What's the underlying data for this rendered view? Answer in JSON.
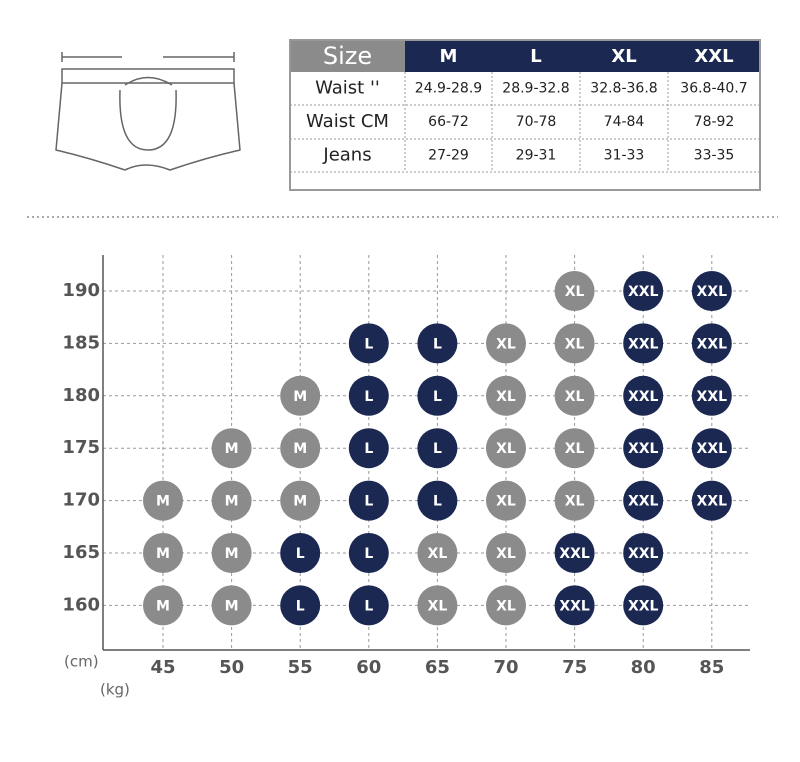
{
  "size_table": {
    "header": [
      "Size",
      "M",
      "L",
      "XL",
      "XXL"
    ],
    "rows": [
      [
        "Waist ''",
        "24.9-28.9",
        "28.9-32.8",
        "32.8-36.8",
        "36.8-40.7"
      ],
      [
        "Waist CM",
        "66-72",
        "70-78",
        "74-84",
        "78-92"
      ],
      [
        "Jeans",
        "27-29",
        "29-31",
        "31-33",
        "33-35"
      ]
    ]
  },
  "size_chart": {
    "y_unit": "(cm)",
    "x_unit": "(kg)",
    "weights": [
      45,
      50,
      55,
      60,
      65,
      70,
      75,
      80,
      85
    ],
    "heights": [
      190,
      185,
      180,
      175,
      170,
      165,
      160
    ],
    "colors": {
      "M": "#8b8b8b",
      "L": "#1b2852",
      "XL": "#8b8b8b",
      "XXL": "#1b2852"
    },
    "cells": [
      [
        null,
        null,
        null,
        null,
        null,
        null,
        "XL",
        "XXL",
        "XXL"
      ],
      [
        null,
        null,
        null,
        "L",
        "L",
        "XL",
        "XL",
        "XXL",
        "XXL"
      ],
      [
        null,
        null,
        "M",
        "L",
        "L",
        "XL",
        "XL",
        "XXL",
        "XXL"
      ],
      [
        null,
        "M",
        "M",
        "L",
        "L",
        "XL",
        "XL",
        "XXL",
        "XXL"
      ],
      [
        "M",
        "M",
        "M",
        "L",
        "L",
        "XL",
        "XL",
        "XXL",
        "XXL"
      ],
      [
        "M",
        "M",
        "L",
        "L",
        "XL",
        "XL",
        "XXL",
        "XXL",
        null
      ],
      [
        "M",
        "M",
        "L",
        "L",
        "XL",
        "XL",
        "XXL",
        "XXL",
        null
      ]
    ]
  }
}
